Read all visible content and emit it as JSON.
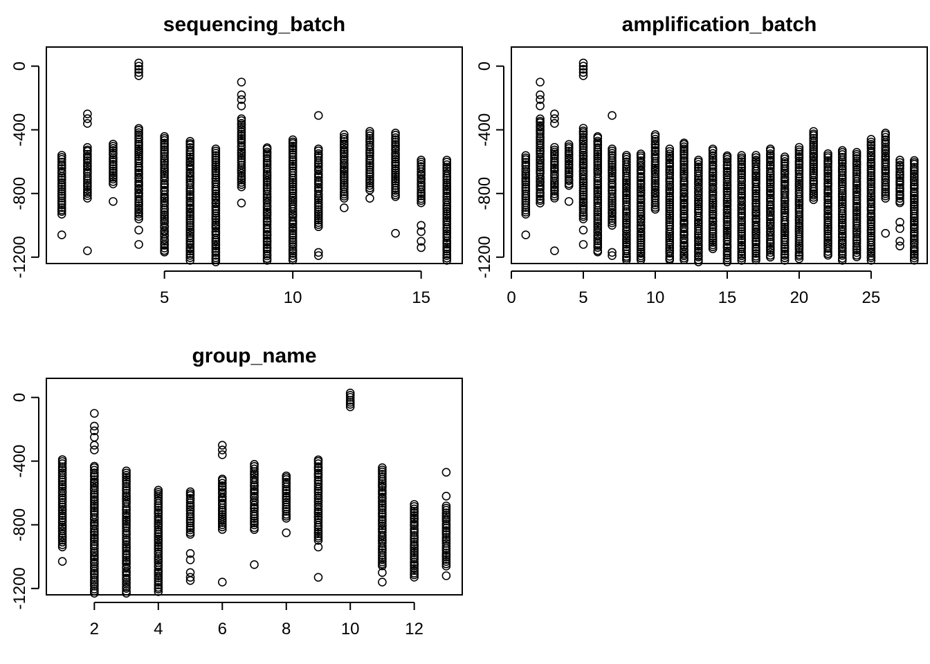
{
  "chart_data": [
    {
      "type": "scatter",
      "title": "sequencing_batch",
      "xlim": [
        0.4,
        16.6
      ],
      "ylim": [
        -1240,
        120
      ],
      "x_ticks": [
        5,
        10,
        15
      ],
      "y_ticks": [
        0,
        -400,
        -800,
        -1200
      ],
      "y_tick_labels": [
        "0",
        "-400",
        "-800",
        "-1200"
      ],
      "columns": [
        {
          "x": 1,
          "min": -930,
          "max": -560,
          "outliers": [
            -1060
          ]
        },
        {
          "x": 2,
          "min": -830,
          "max": -510,
          "outliers": [
            -300,
            -330,
            -360,
            -1160
          ]
        },
        {
          "x": 3,
          "min": -740,
          "max": -490,
          "outliers": [
            -850
          ]
        },
        {
          "x": 4,
          "min": -960,
          "max": -390,
          "outliers": [
            20,
            0,
            -20,
            -40,
            -60,
            -1030,
            -1120
          ]
        },
        {
          "x": 5,
          "min": -1170,
          "max": -440,
          "outliers": []
        },
        {
          "x": 6,
          "min": -1220,
          "max": -470,
          "outliers": []
        },
        {
          "x": 7,
          "min": -1230,
          "max": -520,
          "outliers": []
        },
        {
          "x": 8,
          "min": -760,
          "max": -330,
          "outliers": [
            -100,
            -180,
            -210,
            -250,
            -860
          ]
        },
        {
          "x": 9,
          "min": -1220,
          "max": -510,
          "outliers": []
        },
        {
          "x": 10,
          "min": -1220,
          "max": -460,
          "outliers": []
        },
        {
          "x": 11,
          "min": -1010,
          "max": -520,
          "outliers": [
            -310,
            -1170,
            -1190
          ]
        },
        {
          "x": 12,
          "min": -830,
          "max": -430,
          "outliers": [
            -890
          ]
        },
        {
          "x": 13,
          "min": -780,
          "max": -410,
          "outliers": [
            -830
          ]
        },
        {
          "x": 14,
          "min": -820,
          "max": -420,
          "outliers": [
            -1050
          ]
        },
        {
          "x": 15,
          "min": -860,
          "max": -590,
          "outliers": [
            -1000,
            -1040,
            -1100,
            -1140
          ]
        },
        {
          "x": 16,
          "min": -1220,
          "max": -590,
          "outliers": []
        }
      ]
    },
    {
      "type": "scatter",
      "title": "amplification_batch",
      "xlim": [
        0,
        28.9
      ],
      "ylim": [
        -1240,
        120
      ],
      "x_ticks": [
        0,
        5,
        10,
        15,
        20,
        25
      ],
      "y_ticks": [
        0,
        -400,
        -800,
        -1200
      ],
      "y_tick_labels": [
        "0",
        "-400",
        "-800",
        "-1200"
      ],
      "columns": [
        {
          "x": 1,
          "min": -930,
          "max": -560,
          "outliers": [
            -1060
          ]
        },
        {
          "x": 2,
          "min": -860,
          "max": -330,
          "outliers": [
            -100,
            -180,
            -210,
            -250
          ]
        },
        {
          "x": 3,
          "min": -830,
          "max": -510,
          "outliers": [
            -300,
            -330,
            -360,
            -1160
          ]
        },
        {
          "x": 4,
          "min": -750,
          "max": -490,
          "outliers": [
            -850
          ]
        },
        {
          "x": 5,
          "min": -960,
          "max": -390,
          "outliers": [
            20,
            0,
            -20,
            -40,
            -60,
            -1030,
            -1120
          ]
        },
        {
          "x": 6,
          "min": -1170,
          "max": -440,
          "outliers": []
        },
        {
          "x": 7,
          "min": -1000,
          "max": -520,
          "outliers": [
            -310,
            -1170,
            -1190
          ]
        },
        {
          "x": 8,
          "min": -1220,
          "max": -560,
          "outliers": []
        },
        {
          "x": 9,
          "min": -1220,
          "max": -550,
          "outliers": []
        },
        {
          "x": 10,
          "min": -900,
          "max": -430,
          "outliers": []
        },
        {
          "x": 11,
          "min": -1220,
          "max": -520,
          "outliers": []
        },
        {
          "x": 12,
          "min": -1220,
          "max": -480,
          "outliers": []
        },
        {
          "x": 13,
          "min": -1230,
          "max": -590,
          "outliers": []
        },
        {
          "x": 14,
          "min": -1150,
          "max": -520,
          "outliers": []
        },
        {
          "x": 15,
          "min": -1230,
          "max": -560,
          "outliers": []
        },
        {
          "x": 16,
          "min": -1220,
          "max": -560,
          "outliers": []
        },
        {
          "x": 17,
          "min": -1220,
          "max": -560,
          "outliers": []
        },
        {
          "x": 18,
          "min": -1200,
          "max": -520,
          "outliers": []
        },
        {
          "x": 19,
          "min": -1220,
          "max": -570,
          "outliers": []
        },
        {
          "x": 20,
          "min": -1210,
          "max": -510,
          "outliers": []
        },
        {
          "x": 21,
          "min": -840,
          "max": -410,
          "outliers": []
        },
        {
          "x": 22,
          "min": -1190,
          "max": -550,
          "outliers": []
        },
        {
          "x": 23,
          "min": -1220,
          "max": -530,
          "outliers": []
        },
        {
          "x": 24,
          "min": -1200,
          "max": -540,
          "outliers": []
        },
        {
          "x": 25,
          "min": -1220,
          "max": -460,
          "outliers": []
        },
        {
          "x": 26,
          "min": -830,
          "max": -420,
          "outliers": [
            -1050
          ]
        },
        {
          "x": 27,
          "min": -860,
          "max": -590,
          "outliers": [
            -980,
            -1020,
            -1100,
            -1130
          ]
        },
        {
          "x": 28,
          "min": -1220,
          "max": -590,
          "outliers": []
        }
      ]
    },
    {
      "type": "scatter",
      "title": "group_name",
      "xlim": [
        0.5,
        13.5
      ],
      "ylim": [
        -1240,
        120
      ],
      "x_ticks": [
        2,
        4,
        6,
        8,
        10,
        12
      ],
      "y_ticks": [
        0,
        -400,
        -800,
        -1200
      ],
      "y_tick_labels": [
        "0",
        "-400",
        "-800",
        "-1200"
      ],
      "columns": [
        {
          "x": 1,
          "min": -940,
          "max": -390,
          "outliers": [
            -1030
          ]
        },
        {
          "x": 2,
          "min": -1230,
          "max": -430,
          "outliers": [
            -100,
            -180,
            -210,
            -250,
            -300,
            -330
          ]
        },
        {
          "x": 3,
          "min": -1230,
          "max": -460,
          "outliers": []
        },
        {
          "x": 4,
          "min": -1220,
          "max": -580,
          "outliers": []
        },
        {
          "x": 5,
          "min": -860,
          "max": -590,
          "outliers": [
            -980,
            -1020,
            -1100,
            -1130,
            -1150
          ]
        },
        {
          "x": 6,
          "min": -830,
          "max": -510,
          "outliers": [
            -300,
            -330,
            -360,
            -1160
          ]
        },
        {
          "x": 7,
          "min": -830,
          "max": -420,
          "outliers": [
            -1050
          ]
        },
        {
          "x": 8,
          "min": -760,
          "max": -490,
          "outliers": [
            -850
          ]
        },
        {
          "x": 9,
          "min": -900,
          "max": -390,
          "outliers": [
            -940,
            -1130
          ]
        },
        {
          "x": 10,
          "min": -60,
          "max": 30,
          "outliers": []
        },
        {
          "x": 11,
          "min": -1060,
          "max": -440,
          "outliers": [
            -1100,
            -1160
          ]
        },
        {
          "x": 12,
          "min": -1130,
          "max": -670,
          "outliers": []
        },
        {
          "x": 13,
          "min": -1060,
          "max": -680,
          "outliers": [
            -470,
            -620,
            -1120
          ]
        }
      ]
    }
  ]
}
